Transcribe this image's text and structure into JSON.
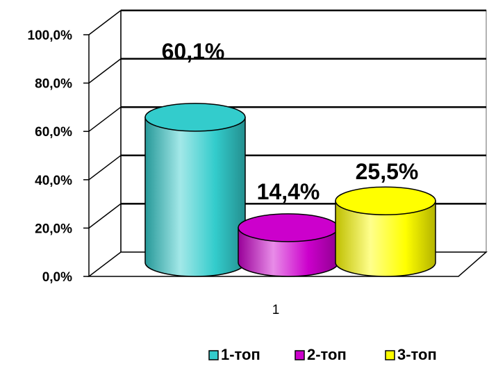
{
  "chart_data": {
    "type": "bar",
    "style": "3d-cylinder",
    "categories": [
      "1"
    ],
    "series": [
      {
        "name": "1-топ",
        "values": [
          60.1
        ],
        "label": "60,1%",
        "color": "#33cccc"
      },
      {
        "name": "2-топ",
        "values": [
          14.4
        ],
        "label": "14,4%",
        "color": "#cc00cc"
      },
      {
        "name": "3-топ",
        "values": [
          25.5
        ],
        "label": "25,5%",
        "color": "#ffff00"
      }
    ],
    "y_ticks": [
      "0,0%",
      "20,0%",
      "40,0%",
      "60,0%",
      "80,0%",
      "100,0%"
    ],
    "ylim": [
      0,
      100
    ],
    "grid": true,
    "legend": "bottom"
  }
}
